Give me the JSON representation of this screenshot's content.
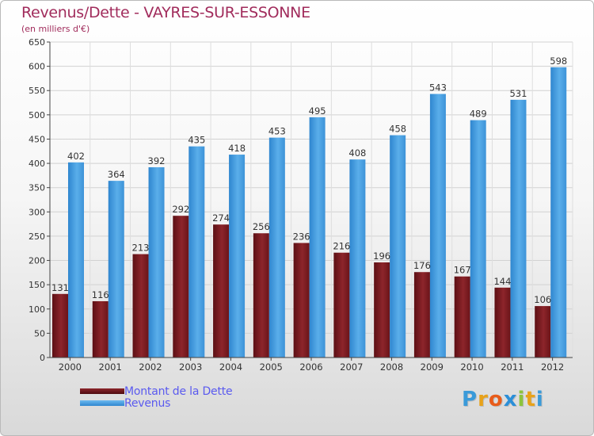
{
  "chart_data": {
    "type": "bar",
    "title": "Revenus/Dette - VAYRES-SUR-ESSONNE",
    "subtitle": "(en milliers d'€)",
    "categories": [
      "2000",
      "2001",
      "2002",
      "2003",
      "2004",
      "2005",
      "2006",
      "2007",
      "2008",
      "2009",
      "2010",
      "2011",
      "2012"
    ],
    "series": [
      {
        "name": "Montant de la Dette",
        "color": "#7a1a1f",
        "values": [
          131,
          116,
          213,
          292,
          274,
          256,
          236,
          216,
          196,
          176,
          167,
          144,
          106
        ]
      },
      {
        "name": "Revenus",
        "color": "#4fa4e3",
        "values": [
          402,
          364,
          392,
          435,
          418,
          453,
          495,
          408,
          458,
          543,
          489,
          531,
          598
        ]
      }
    ],
    "ylim": [
      0,
      650
    ],
    "yticks": [
      0,
      50,
      100,
      150,
      200,
      250,
      300,
      350,
      400,
      450,
      500,
      550,
      600,
      650
    ],
    "grid": true,
    "legend": "bottom-left"
  },
  "logo": {
    "letters": [
      "P",
      "r",
      "o",
      "x",
      "i",
      "t",
      "i"
    ],
    "colors": [
      "#3a9ad9",
      "#e8a21a",
      "#e85c1a",
      "#2b8fd8",
      "#8cc43c",
      "#e8a21a",
      "#3a9ad9"
    ]
  }
}
